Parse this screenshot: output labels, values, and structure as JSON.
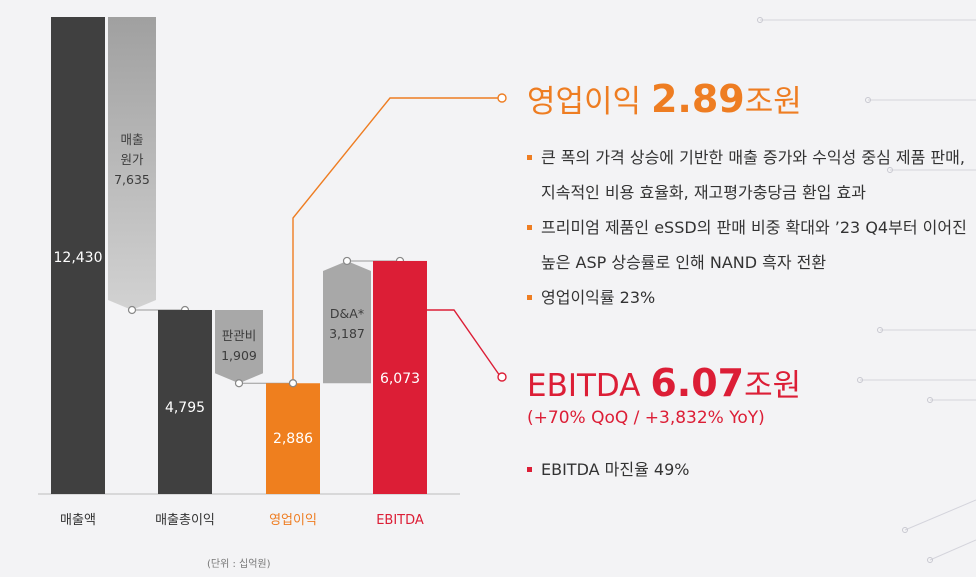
{
  "chart_data": {
    "type": "waterfall",
    "unit_label": "(단위 : 십억원)",
    "categories": [
      "매출액",
      "매출총이익",
      "영업이익",
      "EBITDA"
    ],
    "values": [
      12430,
      4795,
      2886,
      6073
    ],
    "value_labels": [
      "12,430",
      "4,795",
      "2,886",
      "6,073"
    ],
    "bar_colors": [
      "#404040",
      "#404040",
      "#ef7f1e",
      "#dc1e36"
    ],
    "category_label_colors": [
      "#333333",
      "#333333",
      "#ee7d22",
      "#dc1e36"
    ],
    "bridges": [
      {
        "label": [
          "매출",
          "원가",
          "7,635"
        ],
        "value": 7635,
        "from": 12430,
        "to": 4795,
        "direction": "down"
      },
      {
        "label": [
          "판관비",
          "1,909"
        ],
        "value": 1909,
        "from": 4795,
        "to": 2886,
        "direction": "down"
      },
      {
        "label": [
          "D&A*",
          "3,187"
        ],
        "value": 3187,
        "from": 2886,
        "to": 6073,
        "direction": "up"
      }
    ],
    "ylim": [
      0,
      12430
    ]
  },
  "operating_profit": {
    "label": "영업이익",
    "value": "2.89",
    "unit": "조원",
    "bullets": [
      "큰 폭의 가격 상승에 기반한 매출 증가와 수익성 중심 제품 판매, 지속적인 비용 효율화, 재고평가충당금 환입 효과",
      "프리미엄 제품인 eSSD의 판매 비중 확대와 ’23 Q4부터 이어진 높은 ASP 상승률로 인해 NAND 흑자 전환",
      "영업이익률 23%"
    ]
  },
  "ebitda": {
    "label": "EBITDA",
    "value": "6.07",
    "unit": "조원",
    "change": "(+70% QoQ / +3,832% YoY)",
    "bullets": [
      "EBITDA 마진율 49%"
    ]
  },
  "colors": {
    "orange": "#ee7d22",
    "red": "#dc1e36",
    "dark": "#404040",
    "bridge_gray": "#a8a8a8"
  }
}
